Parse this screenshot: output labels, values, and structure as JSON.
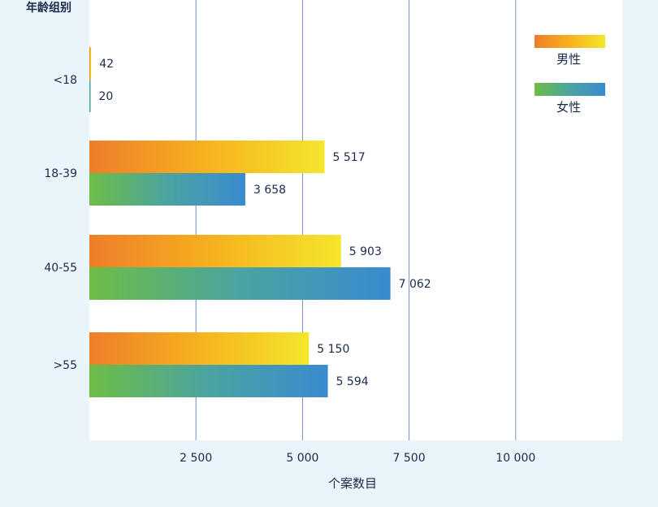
{
  "chart_data": {
    "type": "bar",
    "orientation": "horizontal",
    "title": "年龄组别",
    "xlabel": "个案数目",
    "ylabel": "年龄组别",
    "categories": [
      "<18",
      "18-39",
      "40-55",
      ">55"
    ],
    "series": [
      {
        "name": "男性",
        "values": [
          42,
          5517,
          5903,
          5150
        ],
        "labels": [
          "42",
          "5 517",
          "5 903",
          "5 150"
        ],
        "gradient": [
          "#ee7d2a",
          "#f6b21e",
          "#f4e62b"
        ]
      },
      {
        "name": "女性",
        "values": [
          20,
          3658,
          7062,
          5594
        ],
        "labels": [
          "20",
          "3 658",
          "7 062",
          "5 594"
        ],
        "gradient": [
          "#6dbd45",
          "#4aa3a1",
          "#3a8bd0"
        ]
      }
    ],
    "xticks": [
      2500,
      5000,
      7500,
      10000
    ],
    "xtick_labels": [
      "2 500",
      "5 000",
      "7 500",
      "10  000"
    ],
    "xlim": [
      0,
      12500
    ],
    "grid": true,
    "legend_position": "top-right"
  },
  "colors": {
    "background": "#eaf4fb",
    "plot_area": "#ffffff",
    "gridline": "#6f93bb",
    "text": "#1a2a4a"
  }
}
